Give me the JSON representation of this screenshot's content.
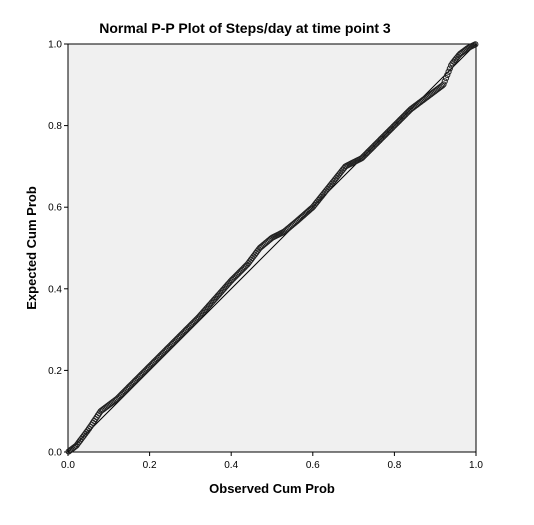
{
  "chart_data": {
    "type": "scatter",
    "title": "Normal P-P Plot of Steps/day at time point 3",
    "xlabel": "Observed Cum Prob",
    "ylabel": "Expected Cum Prob",
    "xlim": [
      0.0,
      1.0
    ],
    "ylim": [
      0.0,
      1.0
    ],
    "x_ticks": [
      "0.0",
      "0.2",
      "0.4",
      "0.6",
      "0.8",
      "1.0"
    ],
    "y_ticks": [
      "0.0",
      "0.2",
      "0.4",
      "0.6",
      "0.8",
      "1.0"
    ],
    "grid": false,
    "reference_line": {
      "x": [
        0.0,
        1.0
      ],
      "y": [
        0.0,
        1.0
      ]
    },
    "curve": {
      "x": [
        0.0,
        0.02,
        0.05,
        0.08,
        0.12,
        0.16,
        0.2,
        0.24,
        0.28,
        0.32,
        0.36,
        0.4,
        0.44,
        0.47,
        0.5,
        0.53,
        0.56,
        0.6,
        0.64,
        0.68,
        0.72,
        0.76,
        0.8,
        0.84,
        0.88,
        0.9,
        0.92,
        0.93,
        0.94,
        0.96,
        0.98,
        1.0
      ],
      "y": [
        0.0,
        0.015,
        0.055,
        0.1,
        0.13,
        0.17,
        0.21,
        0.25,
        0.29,
        0.33,
        0.375,
        0.42,
        0.46,
        0.5,
        0.525,
        0.54,
        0.565,
        0.6,
        0.65,
        0.7,
        0.72,
        0.76,
        0.8,
        0.84,
        0.87,
        0.885,
        0.9,
        0.925,
        0.95,
        0.975,
        0.99,
        1.0
      ]
    },
    "n_points": 320
  }
}
